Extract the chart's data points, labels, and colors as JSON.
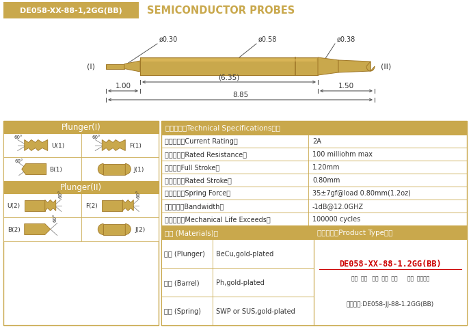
{
  "bg_color": "#ffffff",
  "header_bg": "#c9a84c",
  "header_text": "DE058-XX-88-1,2GG(BB)",
  "header_text_color": "#ffffff",
  "title_text": "SEMICONDUCTOR PROBES",
  "title_color": "#c9a84c",
  "gold": "#c9a84c",
  "dark_gold": "#a07828",
  "border_color": "#c9a84c",
  "black": "#333333",
  "white": "#ffffff",
  "red": "#cc0000",
  "spec_title": "技术要求（Technical Specifications）：",
  "spec_rows": [
    [
      "额定电流（Current Rating）",
      "2A"
    ],
    [
      "额定电阻（Rated Resistance）",
      "100 milliohm max"
    ],
    [
      "满行程（Full Stroke）",
      "1.20mm"
    ],
    [
      "额定行程（Rated Stroke）",
      "0.80mm"
    ],
    [
      "额定弹力（Spring Force）",
      "35±7gf@load 0.80mm(1.2oz)"
    ],
    [
      "频率带宽（Bandwidth）",
      "-1dB@12.0GHZ"
    ],
    [
      "测试寿命（Mechanical Life Exceeds）",
      "100000 cycles"
    ]
  ],
  "mat_title": "材质 (Materials)：",
  "mat_rows": [
    [
      "针头 (Plunger)",
      "BeCu,gold-plated"
    ],
    [
      "针管 (Barrel)",
      "Ph,gold-plated"
    ],
    [
      "弹簧 (Spring)",
      "SWP or SUS,gold-plated"
    ]
  ],
  "prod_title": "成品型号（Product Type）：",
  "prod_model": "DE058-XX-88-1.2GG(BB)",
  "prod_labels": "系列  规格   头型  总长  弹力      镀金  针头材质",
  "prod_example": "订购举例:DE058-JJ-88-1.2GG(BB)",
  "dim_d030": "ø0.30",
  "dim_d058": "ø0.58",
  "dim_d038": "ø0.38",
  "dim_635": "(6.35)",
  "dim_100": "1.00",
  "dim_150": "1.50",
  "dim_885": "8.85",
  "label_I": "(I)",
  "label_II": "(II)"
}
